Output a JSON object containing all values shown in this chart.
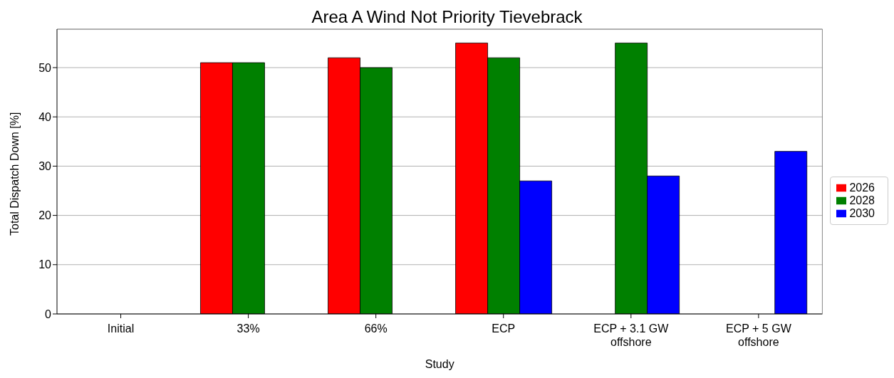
{
  "chart_data": {
    "type": "bar",
    "title": "Area A Wind Not Priority Tievebrack",
    "xlabel": "Study",
    "ylabel": "Total Dispatch Down [%]",
    "categories": [
      "Initial",
      "33%",
      "66%",
      "ECP",
      "ECP + 3.1 GW offshore",
      "ECP + 5 GW offshore"
    ],
    "series": [
      {
        "name": "2026",
        "color": "#ff0000",
        "values": [
          null,
          51,
          52,
          55,
          null,
          null
        ]
      },
      {
        "name": "2028",
        "color": "#008000",
        "values": [
          null,
          51,
          50,
          52,
          55,
          null
        ]
      },
      {
        "name": "2030",
        "color": "#0000ff",
        "values": [
          null,
          null,
          null,
          27,
          28,
          33
        ]
      }
    ],
    "ylim": [
      0,
      57.8
    ],
    "yticks": [
      0,
      10,
      20,
      30,
      40,
      50
    ],
    "grid": "y",
    "legend": "right"
  }
}
